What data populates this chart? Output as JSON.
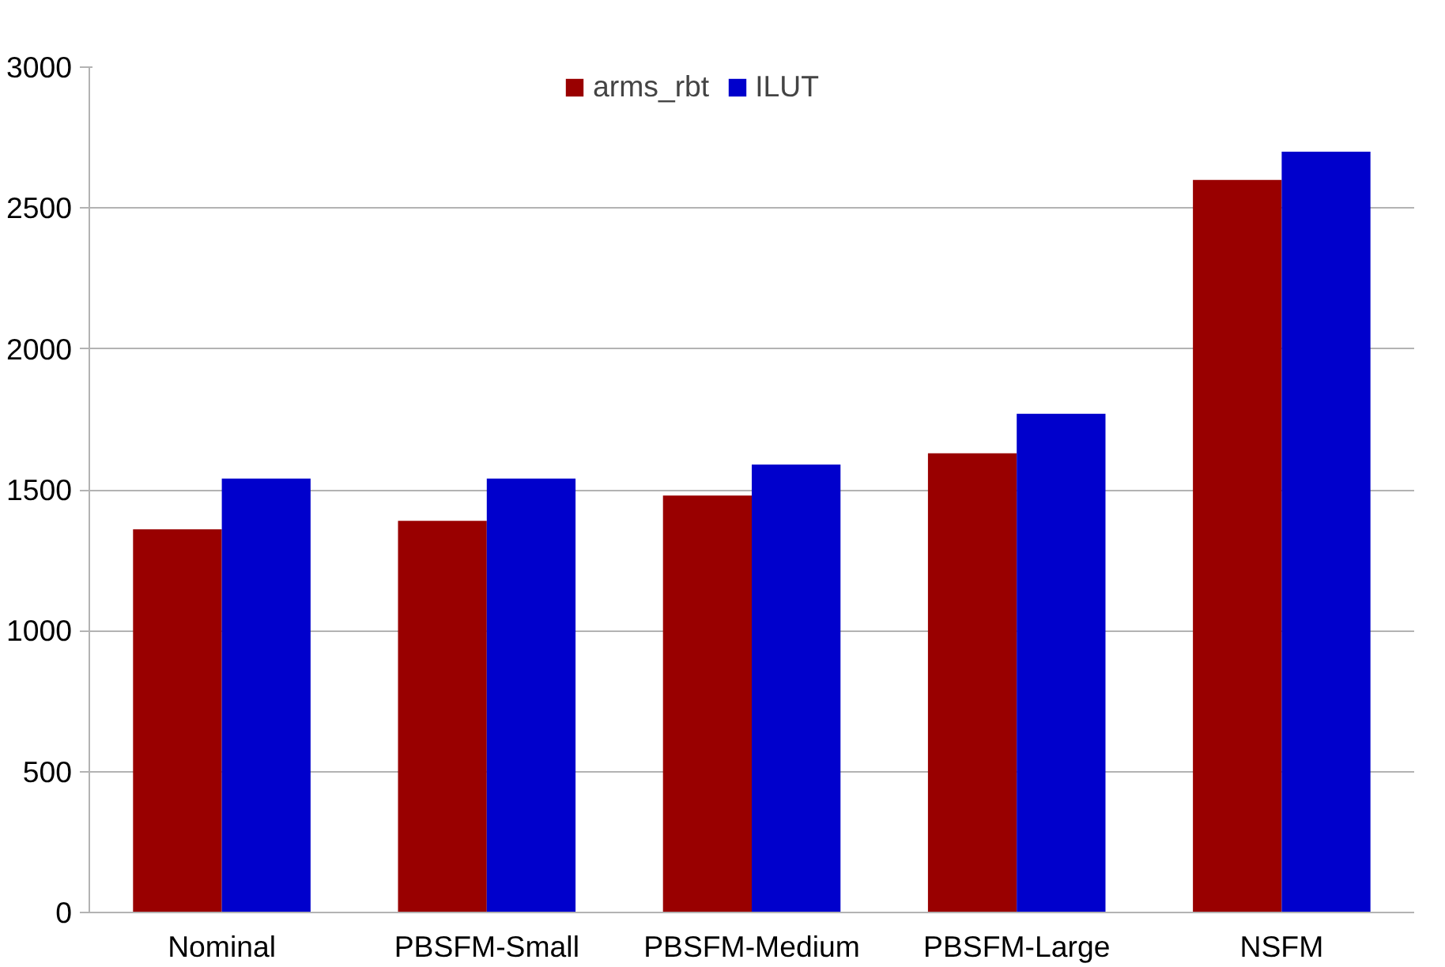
{
  "chart_data": {
    "type": "bar",
    "categories": [
      "Nominal",
      "PBSFM-Small",
      "PBSFM-Medium",
      "PBSFM-Large",
      "NSFM"
    ],
    "series": [
      {
        "name": "arms_rbt",
        "color": "#990000",
        "values": [
          1360,
          1390,
          1480,
          1630,
          2600
        ]
      },
      {
        "name": "ILUT",
        "color": "#0000cc",
        "values": [
          1540,
          1540,
          1590,
          1770,
          2700
        ]
      }
    ],
    "ylim": [
      0,
      3000
    ],
    "yticks": [
      0,
      500,
      1000,
      1500,
      2000,
      2500,
      3000
    ],
    "grid": "y",
    "legend": "top"
  }
}
